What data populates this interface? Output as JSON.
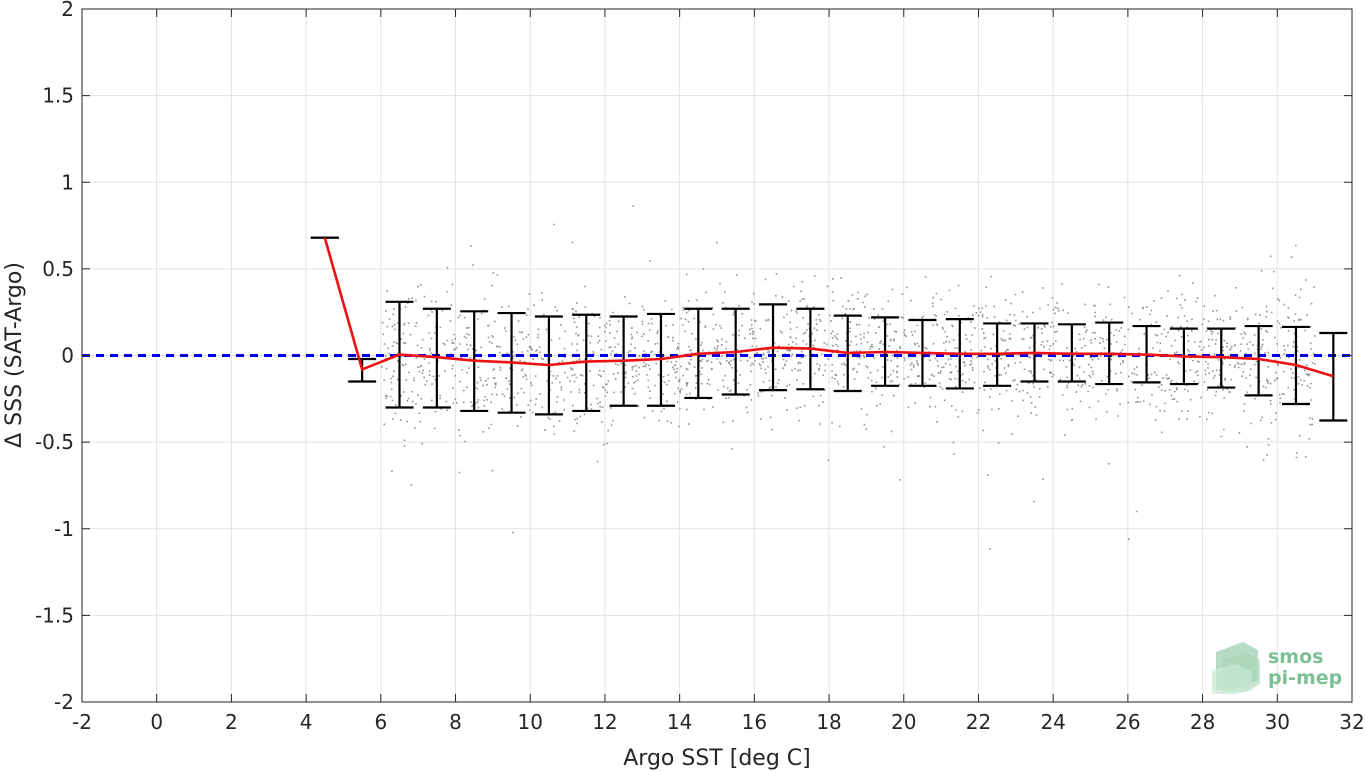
{
  "chart_data": {
    "type": "scatter",
    "title": "",
    "xlabel": "Argo SST [deg C]",
    "ylabel": "Δ SSS (SAT-Argo)",
    "xlim": [
      -2,
      32
    ],
    "ylim": [
      -2,
      2
    ],
    "xticks": [
      -2,
      0,
      2,
      4,
      6,
      8,
      10,
      12,
      14,
      16,
      18,
      20,
      22,
      24,
      26,
      28,
      30,
      32
    ],
    "yticks": [
      2,
      1.5,
      1,
      0.5,
      0,
      -0.5,
      -1,
      -1.5,
      -2
    ],
    "ytick_labels": [
      "2",
      "1.5",
      "1",
      "0.5",
      "0",
      "-0.5",
      "-1",
      "-1.5",
      "-2"
    ],
    "grid": true,
    "reference_line": {
      "y": 0,
      "style": "dashed",
      "color": "#0000ee"
    },
    "scatter_color": "#808080",
    "scatter_description": "dense cloud of individual match-ups spanning SST 6-31, mostly between -0.5 and 0.5",
    "mean_line": {
      "color": "#ee1111",
      "x": [
        4.5,
        5.5,
        6.5,
        7.5,
        8.5,
        9.5,
        10.5,
        11.5,
        12.5,
        13.5,
        14.5,
        15.5,
        16.5,
        17.5,
        18.5,
        19.5,
        20.5,
        21.5,
        22.5,
        23.5,
        24.5,
        25.5,
        26.5,
        27.5,
        28.5,
        29.5,
        30.5,
        31.5
      ],
      "y": [
        0.68,
        -0.08,
        0.005,
        -0.01,
        -0.03,
        -0.04,
        -0.055,
        -0.035,
        -0.03,
        -0.02,
        0.01,
        0.02,
        0.045,
        0.04,
        0.015,
        0.02,
        0.015,
        0.01,
        0.01,
        0.015,
        0.01,
        0.01,
        0.005,
        -0.005,
        -0.01,
        -0.02,
        -0.055,
        -0.12
      ]
    },
    "error_bars": {
      "color": "#000000",
      "x": [
        4.5,
        5.5,
        6.5,
        7.5,
        8.5,
        9.5,
        10.5,
        11.5,
        12.5,
        13.5,
        14.5,
        15.5,
        16.5,
        17.5,
        18.5,
        19.5,
        20.5,
        21.5,
        22.5,
        23.5,
        24.5,
        25.5,
        26.5,
        27.5,
        28.5,
        29.5,
        30.5,
        31.5
      ],
      "low": [
        0.68,
        -0.15,
        -0.3,
        -0.3,
        -0.32,
        -0.33,
        -0.34,
        -0.32,
        -0.29,
        -0.29,
        -0.245,
        -0.225,
        -0.2,
        -0.195,
        -0.205,
        -0.175,
        -0.175,
        -0.19,
        -0.175,
        -0.15,
        -0.15,
        -0.165,
        -0.155,
        -0.165,
        -0.185,
        -0.23,
        -0.28,
        -0.375
      ],
      "high": [
        0.68,
        -0.02,
        0.31,
        0.27,
        0.255,
        0.245,
        0.225,
        0.235,
        0.225,
        0.24,
        0.27,
        0.27,
        0.295,
        0.27,
        0.23,
        0.22,
        0.205,
        0.21,
        0.185,
        0.185,
        0.18,
        0.19,
        0.17,
        0.155,
        0.155,
        0.17,
        0.165,
        0.13
      ]
    },
    "logo": {
      "line1": "smos",
      "line2": "pi-mep",
      "color": "#7cbf95"
    }
  }
}
